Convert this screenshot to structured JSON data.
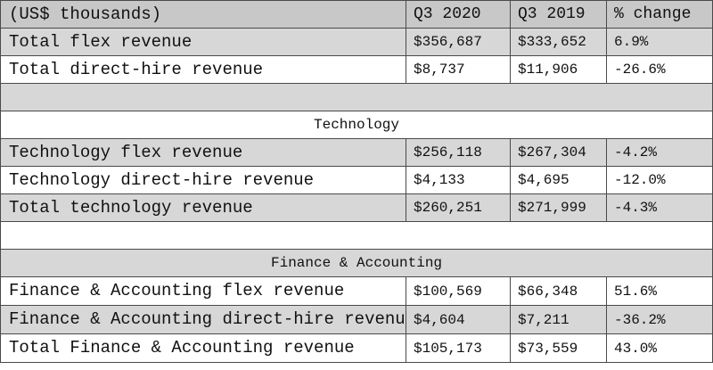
{
  "table": {
    "header": [
      "(US$ thousands)",
      "Q3 2020",
      "Q3 2019",
      "% change"
    ],
    "totals": [
      {
        "label": "Total flex revenue",
        "q3_2020": "$356,687",
        "q3_2019": "$333,652",
        "change": "6.9%"
      },
      {
        "label": "Total direct-hire revenue",
        "q3_2020": "$8,737",
        "q3_2019": "$11,906",
        "change": "-26.6%"
      }
    ],
    "technology": {
      "title": "Technology",
      "rows": [
        {
          "label": "Technology flex revenue",
          "q3_2020": "$256,118",
          "q3_2019": "$267,304",
          "change": "-4.2%"
        },
        {
          "label": "Technology direct-hire revenue",
          "q3_2020": "$4,133",
          "q3_2019": "$4,695",
          "change": "-12.0%"
        },
        {
          "label": "Total technology revenue",
          "q3_2020": "$260,251",
          "q3_2019": "$271,999",
          "change": "-4.3%"
        }
      ]
    },
    "finance": {
      "title": "Finance & Accounting",
      "rows": [
        {
          "label": "Finance & Accounting flex revenue",
          "q3_2020": "$100,569",
          "q3_2019": "$66,348",
          "change": "51.6%"
        },
        {
          "label": "Finance & Accounting direct-hire revenue",
          "q3_2020": "$4,604",
          "q3_2019": "$7,211",
          "change": "-36.2%"
        },
        {
          "label": "Total Finance & Accounting revenue",
          "q3_2020": "$105,173",
          "q3_2019": "$73,559",
          "change": "43.0%"
        }
      ]
    }
  },
  "colors": {
    "header_bg": "#c8c8c8",
    "shaded_row_bg": "#d7d7d7",
    "border": "#4a4a4a"
  }
}
